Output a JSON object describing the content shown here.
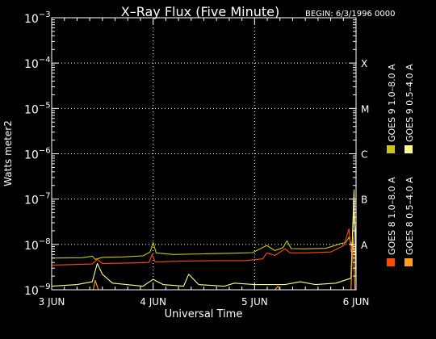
{
  "chart_data": {
    "type": "line",
    "title": "X–Ray Flux (Five Minute)",
    "begin_label": "BEGIN: 6/3/1996 0000",
    "xlabel": "Universal Time",
    "ylabel": "Watts meter2",
    "y_scale": "log",
    "ylim": [
      1e-09,
      0.001
    ],
    "xlim": [
      0,
      3
    ],
    "x_ticks": [
      {
        "value": 0,
        "label": "3 JUN"
      },
      {
        "value": 1,
        "label": "4 JUN"
      },
      {
        "value": 2,
        "label": "5 JUN"
      },
      {
        "value": 3,
        "label": "6 JUN"
      }
    ],
    "y_ticks": [
      {
        "exp": -3,
        "base": "10",
        "sup": "−3"
      },
      {
        "exp": -4,
        "base": "10",
        "sup": "−4"
      },
      {
        "exp": -5,
        "base": "10",
        "sup": "−5"
      },
      {
        "exp": -6,
        "base": "10",
        "sup": "−6"
      },
      {
        "exp": -7,
        "base": "10",
        "sup": "−7"
      },
      {
        "exp": -8,
        "base": "10",
        "sup": "−8"
      },
      {
        "exp": -9,
        "base": "10",
        "sup": "−9"
      }
    ],
    "flare_classes": [
      {
        "label": "X",
        "exp": -4
      },
      {
        "label": "M",
        "exp": -5
      },
      {
        "label": "C",
        "exp": -6
      },
      {
        "label": "B",
        "exp": -7
      },
      {
        "label": "A",
        "exp": -8
      }
    ],
    "grid": true,
    "legend_position": "right, rotated vertical",
    "legend_column_1": [
      {
        "name": "GOES 8  1.0–8.0 A",
        "color": "#ff4a00"
      },
      {
        "name": "GOES 9  1.0–8.0 A",
        "color": "#c9c71a"
      }
    ],
    "legend_column_2": [
      {
        "name": "GOES 8  0.5–4.0 A",
        "color": "#ffa21a"
      },
      {
        "name": "GOES 9  0.5–4.0 A",
        "color": "#ffff8a"
      }
    ],
    "series": [
      {
        "name": "GOES 9  1.0–8.0 A",
        "color": "#c9c71a",
        "points": [
          [
            0,
            5e-09
          ],
          [
            0.3,
            5.1e-09
          ],
          [
            0.4,
            5.5e-09
          ],
          [
            0.43,
            4.7e-09
          ],
          [
            0.5,
            5.2e-09
          ],
          [
            0.7,
            5.3e-09
          ],
          [
            0.9,
            5.6e-09
          ],
          [
            0.97,
            6.8e-09
          ],
          [
            1,
            1.1e-08
          ],
          [
            1.03,
            6.5e-09
          ],
          [
            1.2,
            6e-09
          ],
          [
            1.5,
            6.2e-09
          ],
          [
            1.8,
            6.4e-09
          ],
          [
            1.98,
            6.6e-09
          ],
          [
            2.12,
            9.5e-09
          ],
          [
            2.2,
            7.3e-09
          ],
          [
            2.28,
            8.5e-09
          ],
          [
            2.32,
            1.2e-08
          ],
          [
            2.36,
            8.1e-09
          ],
          [
            2.5,
            8e-09
          ],
          [
            2.7,
            8.2e-09
          ],
          [
            2.8,
            9.6e-09
          ],
          [
            2.85,
            1.05e-08
          ],
          [
            2.9,
            1.1e-08
          ],
          [
            2.93,
            1.45e-08
          ],
          [
            2.96,
            9e-09
          ],
          [
            2.98,
            5e-08
          ],
          [
            3,
            1.2e-08
          ]
        ]
      },
      {
        "name": "GOES 8  1.0–8.0 A",
        "color": "#ff4a00",
        "points": [
          [
            0,
            3.5e-09
          ],
          [
            0.2,
            3.6e-09
          ],
          [
            0.4,
            3.7e-09
          ],
          [
            0.45,
            4.7e-09
          ],
          [
            0.5,
            3.8e-09
          ],
          [
            0.8,
            3.9e-09
          ],
          [
            0.96,
            4e-09
          ],
          [
            0.99,
            6e-09
          ],
          [
            1.02,
            4.1e-09
          ],
          [
            1.3,
            4.3e-09
          ],
          [
            1.6,
            4.4e-09
          ],
          [
            1.9,
            4.4e-09
          ],
          [
            2.08,
            4.8e-09
          ],
          [
            2.12,
            6.5e-09
          ],
          [
            2.2,
            5.7e-09
          ],
          [
            2.3,
            8e-09
          ],
          [
            2.35,
            6.5e-09
          ],
          [
            2.5,
            6.5e-09
          ],
          [
            2.75,
            6.8e-09
          ],
          [
            2.88,
            9.5e-09
          ],
          [
            2.93,
            2.2e-08
          ],
          [
            2.95,
            7e-09
          ],
          [
            2.98,
            8e-09
          ],
          [
            3,
            5e-09
          ]
        ]
      },
      {
        "name": "GOES 9  0.5–4.0 A",
        "color": "#ffff8a",
        "points": [
          [
            0,
            1.2e-09
          ],
          [
            0.25,
            1.3e-09
          ],
          [
            0.4,
            1.5e-09
          ],
          [
            0.45,
            3.8e-09
          ],
          [
            0.5,
            2.2e-09
          ],
          [
            0.6,
            1.4e-09
          ],
          [
            0.9,
            1.2e-09
          ],
          [
            1,
            1.7e-09
          ],
          [
            1.1,
            1.3e-09
          ],
          [
            1.3,
            1.2e-09
          ],
          [
            1.35,
            2.2e-09
          ],
          [
            1.45,
            1.3e-09
          ],
          [
            1.7,
            1.2e-09
          ],
          [
            1.8,
            1.4e-09
          ],
          [
            2,
            1.3e-09
          ],
          [
            2.3,
            1.3e-09
          ],
          [
            2.45,
            1.5e-09
          ],
          [
            2.6,
            1.3e-09
          ],
          [
            2.8,
            1.4e-09
          ],
          [
            2.95,
            1.8e-09
          ],
          [
            2.98,
            1.6e-07
          ],
          [
            3,
            1.5e-09
          ]
        ]
      },
      {
        "name": "GOES 8  0.5–4.0 A",
        "color": "#ffa21a",
        "points": [
          [
            0.41,
            1e-09
          ],
          [
            0.43,
            1.6e-09
          ],
          [
            0.46,
            1e-09
          ],
          [
            2.2,
            1e-09
          ],
          [
            2.23,
            1.2e-09
          ],
          [
            2.25,
            1e-09
          ],
          [
            2.95,
            1e-09
          ],
          [
            2.97,
            1.5e-08
          ],
          [
            2.99,
            1e-09
          ]
        ]
      }
    ]
  }
}
